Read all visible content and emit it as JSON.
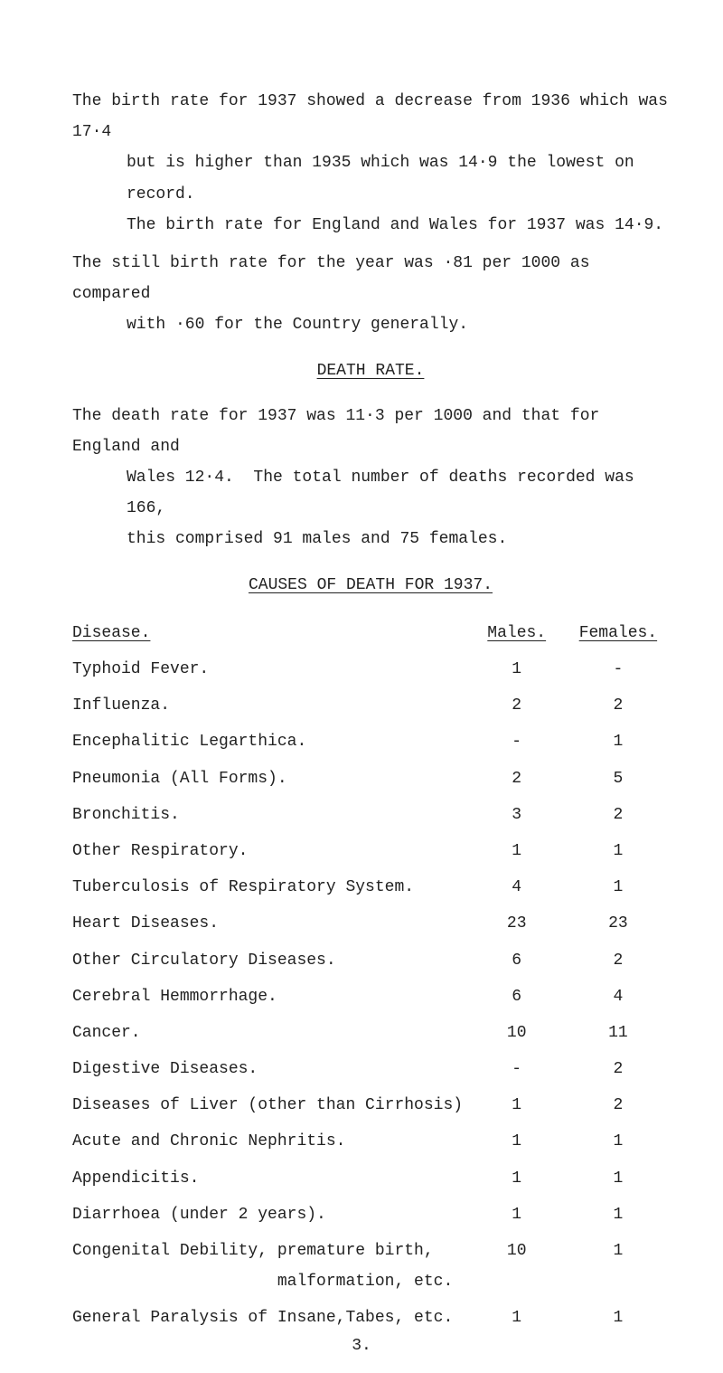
{
  "paragraphs": {
    "p1": "The birth rate for 1937 showed a decrease from 1936 which was 17·4",
    "p1b": "but is higher than 1935 which was 14·9 the lowest on record.",
    "p1c": "The birth rate for England and Wales for 1937 was 14·9.",
    "p2": "The still birth rate for the year was ·81 per 1000 as compared",
    "p2b": "with ·60 for the Country generally.",
    "h1": "DEATH RATE.",
    "p3": "The death rate for 1937 was 11·3 per 1000 and that for England and",
    "p3b": "Wales 12·4.  The total number of deaths recorded was 166,",
    "p3c": "this comprised 91 males and 75 females.",
    "h2": "CAUSES OF DEATH FOR 1937."
  },
  "table": {
    "headers": {
      "disease": "Disease.",
      "males": "Males.",
      "females": "Females."
    },
    "rows": [
      {
        "d": "Typhoid Fever.",
        "m": "1",
        "f": "-"
      },
      {
        "d": "Influenza.",
        "m": "2",
        "f": "2"
      },
      {
        "d": "Encephalitic Legarthica.",
        "m": "-",
        "f": "1"
      },
      {
        "d": "Pneumonia (All Forms).",
        "m": "2",
        "f": "5"
      },
      {
        "d": "Bronchitis.",
        "m": "3",
        "f": "2"
      },
      {
        "d": "Other Respiratory.",
        "m": "1",
        "f": "1"
      },
      {
        "d": "Tuberculosis of Respiratory System.",
        "m": "4",
        "f": "1"
      },
      {
        "d": "Heart Diseases.",
        "m": "23",
        "f": "23"
      },
      {
        "d": "Other Circulatory Diseases.",
        "m": "6",
        "f": "2"
      },
      {
        "d": "Cerebral Hemmorrhage.",
        "m": "6",
        "f": "4"
      },
      {
        "d": "Cancer.",
        "m": "10",
        "f": "11"
      },
      {
        "d": "Digestive Diseases.",
        "m": "-",
        "f": "2"
      },
      {
        "d": "Diseases of Liver (other than Cirrhosis)",
        "m": "1",
        "f": "2"
      },
      {
        "d": "Acute and Chronic Nephritis.",
        "m": "1",
        "f": "1"
      },
      {
        "d": "Appendicitis.",
        "m": "1",
        "f": "1"
      },
      {
        "d": "Diarrhoea (under 2 years).",
        "m": "1",
        "f": "1"
      },
      {
        "d": "Congenital Debility, premature birth,\n                     malformation, etc.",
        "m": "10",
        "f": "1"
      },
      {
        "d": "General Paralysis of Insane,Tabes, etc.",
        "m": "1",
        "f": "1"
      }
    ]
  },
  "page_number": "3."
}
